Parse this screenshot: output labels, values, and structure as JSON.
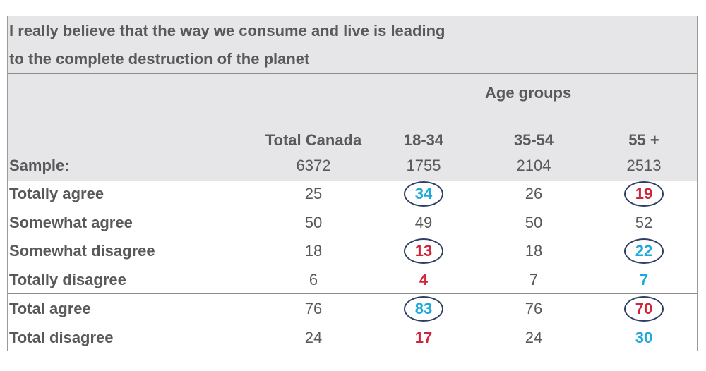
{
  "title": {
    "line1": "I really believe that the way we consume and live is leading",
    "line2": "to the complete destruction of the planet"
  },
  "chart_data": {
    "type": "table",
    "group_header": "Age groups",
    "columns": [
      "Total Canada",
      "18-34",
      "35-54",
      "55 +"
    ],
    "sample_label": "Sample:",
    "sample": [
      "6372",
      "1755",
      "2104",
      "2513"
    ],
    "rows": [
      {
        "label": "Totally agree",
        "values": [
          "25",
          "34",
          "26",
          "19"
        ],
        "flags": [
          "",
          "high",
          "",
          "low"
        ],
        "circled": [
          false,
          true,
          false,
          true
        ]
      },
      {
        "label": "Somewhat agree",
        "values": [
          "50",
          "49",
          "50",
          "52"
        ],
        "flags": [
          "",
          "",
          "",
          ""
        ],
        "circled": [
          false,
          false,
          false,
          false
        ]
      },
      {
        "label": "Somewhat disagree",
        "values": [
          "18",
          "13",
          "18",
          "22"
        ],
        "flags": [
          "",
          "low",
          "",
          "high"
        ],
        "circled": [
          false,
          true,
          false,
          true
        ]
      },
      {
        "label": "Totally disagree",
        "values": [
          "6",
          "4",
          "7",
          "7"
        ],
        "flags": [
          "",
          "low",
          "",
          "high"
        ],
        "circled": [
          false,
          false,
          false,
          false
        ]
      },
      {
        "label": "Total agree",
        "values": [
          "76",
          "83",
          "76",
          "70"
        ],
        "flags": [
          "",
          "high",
          "",
          "low"
        ],
        "circled": [
          false,
          true,
          false,
          true
        ]
      },
      {
        "label": "Total disagree",
        "values": [
          "24",
          "17",
          "24",
          "30"
        ],
        "flags": [
          "",
          "low",
          "",
          "high"
        ],
        "circled": [
          false,
          false,
          false,
          false
        ]
      }
    ],
    "colors": {
      "high": "#1fa8db",
      "low": "#d0243c",
      "ring": "#2e3f66",
      "text": "#595959",
      "header_bg": "#e6e6e9"
    }
  }
}
